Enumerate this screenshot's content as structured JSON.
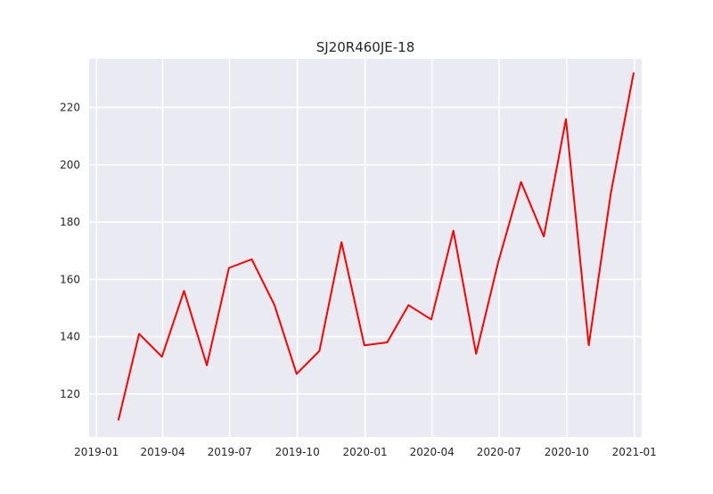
{
  "chart_data": {
    "type": "line",
    "title": "SJ20R460JE-18",
    "xlabel": "",
    "ylabel": "",
    "x_tick_labels": [
      "2019-01",
      "2019-04",
      "2019-07",
      "2019-10",
      "2020-01",
      "2020-04",
      "2020-07",
      "2020-10",
      "2021-01"
    ],
    "x_ticks": [
      "2019-01-01",
      "2019-04-01",
      "2019-07-01",
      "2019-10-01",
      "2020-01-01",
      "2020-04-01",
      "2020-07-01",
      "2020-10-01",
      "2021-01-01"
    ],
    "y_ticks": [
      120,
      140,
      160,
      180,
      200,
      220
    ],
    "xlim": [
      "2018-12-22",
      "2021-01-11"
    ],
    "ylim": [
      105,
      237
    ],
    "grid": true,
    "background": "#eaeaf2",
    "series": [
      {
        "color": "#ff0000",
        "x": [
          "2019-01-31",
          "2019-02-28",
          "2019-03-31",
          "2019-04-30",
          "2019-05-31",
          "2019-06-30",
          "2019-07-31",
          "2019-08-31",
          "2019-09-30",
          "2019-10-31",
          "2019-11-30",
          "2019-12-31",
          "2020-01-31",
          "2020-02-29",
          "2020-03-31",
          "2020-04-30",
          "2020-05-31",
          "2020-06-30",
          "2020-07-31",
          "2020-08-31",
          "2020-09-30",
          "2020-10-31",
          "2020-11-30",
          "2020-12-31"
        ],
        "y": [
          111,
          141,
          133,
          156,
          130,
          164,
          167,
          151,
          127,
          135,
          173,
          137,
          138,
          151,
          146,
          177,
          134,
          166,
          194,
          175,
          216,
          137,
          190,
          232
        ]
      }
    ]
  }
}
